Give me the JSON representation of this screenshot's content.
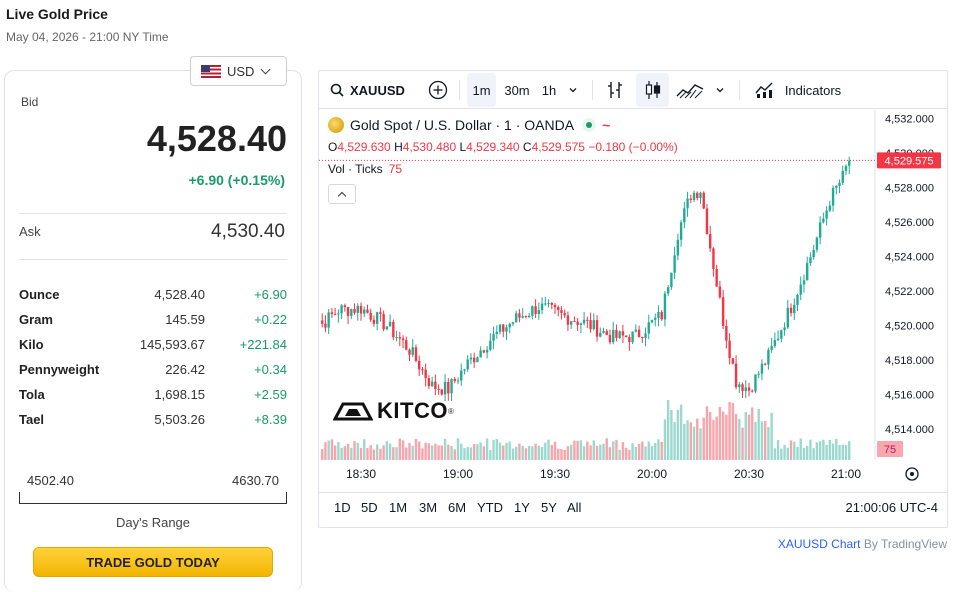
{
  "header": {
    "title": "Live Gold Price",
    "subtitle": "May 04, 2026 - 21:00 NY Time"
  },
  "currency": {
    "selected": "USD",
    "icon": "us-flag-icon"
  },
  "quote": {
    "bid_label": "Bid",
    "bid": "4,528.40",
    "change": "+6.90 (+0.15%)",
    "ask_label": "Ask",
    "ask": "4,530.40"
  },
  "units": [
    {
      "unit": "Ounce",
      "price": "4,528.40",
      "change": "+6.90"
    },
    {
      "unit": "Gram",
      "price": "145.59",
      "change": "+0.22"
    },
    {
      "unit": "Kilo",
      "price": "145,593.67",
      "change": "+221.84"
    },
    {
      "unit": "Pennyweight",
      "price": "226.42",
      "change": "+0.34"
    },
    {
      "unit": "Tola",
      "price": "1,698.15",
      "change": "+2.59"
    },
    {
      "unit": "Tael",
      "price": "5,503.26",
      "change": "+8.39"
    }
  ],
  "range": {
    "low": "4502.40",
    "high": "4630.70",
    "label": "Day's Range"
  },
  "trade_button": "TRADE GOLD TODAY",
  "chart_toolbar": {
    "symbol": "XAUUSD",
    "intervals": [
      "1m",
      "30m",
      "1h"
    ],
    "active_interval": "1m",
    "indicators": "Indicators"
  },
  "legend": {
    "title": "Gold Spot / U.S. Dollar · 1 · OANDA",
    "open_key": "O",
    "open": "4,529.630",
    "high_key": "H",
    "high": "4,530.480",
    "low_key": "L",
    "low": "4,529.340",
    "close_key": "C",
    "close": "4,529.575",
    "change": "−0.180 (−0.00%)",
    "vol_label": "Vol · Ticks",
    "vol_value": "75",
    "market_status_icon": "~"
  },
  "periods": [
    "1D",
    "5D",
    "1M",
    "3M",
    "6M",
    "YTD",
    "1Y",
    "5Y",
    "All"
  ],
  "clock": "21:00:06 UTC-4",
  "attribution": {
    "symbol": "XAUUSD Chart",
    "by": "By TradingView"
  },
  "logo": {
    "text": "KITCO"
  },
  "colors": {
    "up": "#22ab94",
    "down": "#f23645",
    "positive_text": "#1a9a6a",
    "button": "#f5bd0a"
  },
  "chart_data": {
    "type": "candlestick",
    "symbol": "XAUUSD",
    "x_ticks": [
      "18:30",
      "19:00",
      "19:30",
      "20:00",
      "20:30",
      "21:00"
    ],
    "y_ticks": [
      "4,514.000",
      "4,516.000",
      "4,518.000",
      "4,520.000",
      "4,522.000",
      "4,524.000",
      "4,526.000",
      "4,528.000",
      "4,530.000",
      "4,532.000"
    ],
    "ylim": [
      4512.2,
      4532.5
    ],
    "last_price": "4,529.575",
    "last_volume": "75",
    "close_path": [
      {
        "t": "18:13",
        "v": 4521.3
      },
      {
        "t": "18:18",
        "v": 4520.1
      },
      {
        "t": "18:23",
        "v": 4520.9
      },
      {
        "t": "18:30",
        "v": 4521.0
      },
      {
        "t": "18:38",
        "v": 4520.0
      },
      {
        "t": "18:45",
        "v": 4518.6
      },
      {
        "t": "18:52",
        "v": 4516.5
      },
      {
        "t": "18:57",
        "v": 4516.3
      },
      {
        "t": "19:03",
        "v": 4517.8
      },
      {
        "t": "19:10",
        "v": 4519.2
      },
      {
        "t": "19:18",
        "v": 4520.4
      },
      {
        "t": "19:25",
        "v": 4521.1
      },
      {
        "t": "19:32",
        "v": 4520.6
      },
      {
        "t": "19:40",
        "v": 4520.1
      },
      {
        "t": "19:48",
        "v": 4519.3
      },
      {
        "t": "19:55",
        "v": 4519.4
      },
      {
        "t": "20:03",
        "v": 4520.6
      },
      {
        "t": "20:08",
        "v": 4525.4
      },
      {
        "t": "20:12",
        "v": 4527.6
      },
      {
        "t": "20:15",
        "v": 4527.9
      },
      {
        "t": "20:18",
        "v": 4524.6
      },
      {
        "t": "20:22",
        "v": 4520.3
      },
      {
        "t": "20:26",
        "v": 4516.8
      },
      {
        "t": "20:30",
        "v": 4516.3
      },
      {
        "t": "20:36",
        "v": 4518.2
      },
      {
        "t": "20:43",
        "v": 4521.1
      },
      {
        "t": "20:50",
        "v": 4524.5
      },
      {
        "t": "20:55",
        "v": 4527.3
      },
      {
        "t": "20:59",
        "v": 4528.6
      },
      {
        "t": "21:01",
        "v": 4529.6
      }
    ]
  }
}
